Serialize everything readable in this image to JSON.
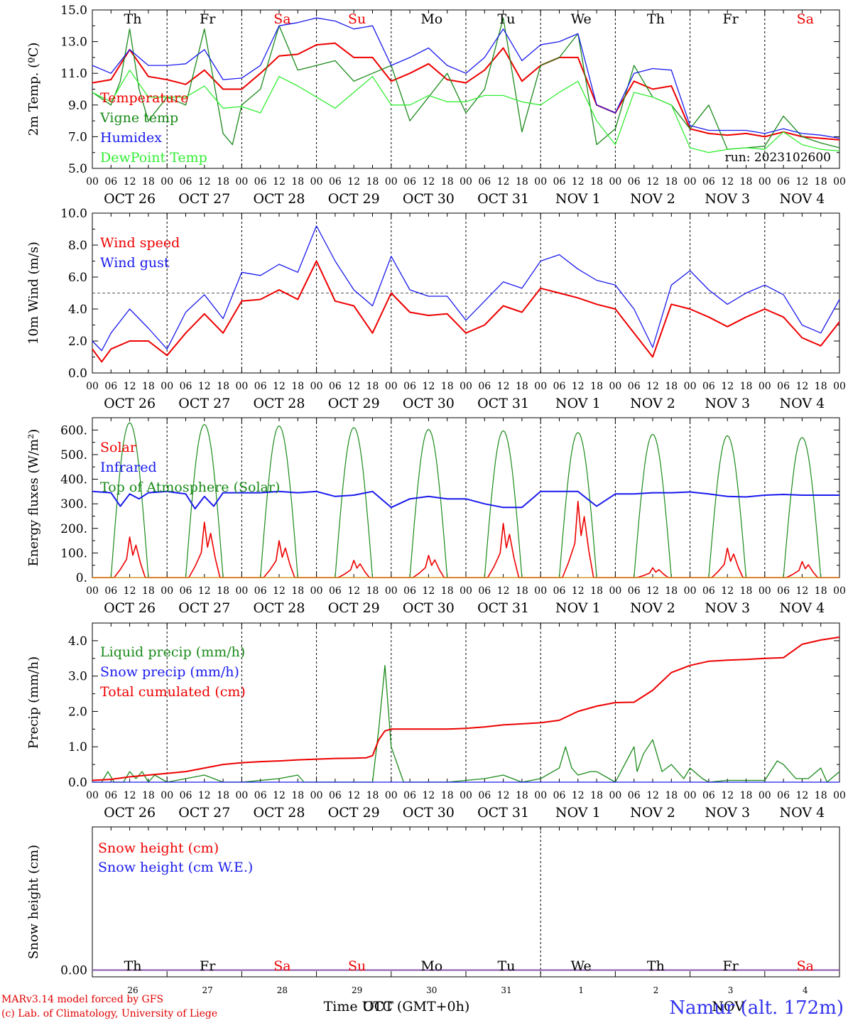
{
  "footer": {
    "credit1": "MARv3.14 model forced by GFS",
    "credit2": "(c) Lab. of Climatology, University of Liege",
    "xlabel": "Time UTC (GMT+0h)",
    "station": "Namur (alt. 172m)",
    "month_left": "OCT",
    "month_right": "NOV"
  },
  "colors": {
    "red": "#ee0000",
    "green": "#1a8a1a",
    "blue": "#1a1aee",
    "lightgreen": "#33ee33",
    "purple": "#8855aa"
  },
  "chart_data": [
    {
      "id": "temp",
      "type": "line",
      "ylabel": "2m Temp. (ºC)",
      "ylim": [
        5,
        15
      ],
      "yticks": [
        5,
        7,
        9,
        11,
        13,
        15
      ],
      "ytick_labels": [
        "5.0",
        "7.0",
        "9.0",
        "11.0",
        "13.0",
        "15.0"
      ],
      "annotation": "run: 2023102600",
      "day_names": [
        "Th",
        "Fr",
        "Sa",
        "Su",
        "Mo",
        "Tu",
        "We",
        "Th",
        "Fr",
        "Sa"
      ],
      "weekend_idx": [
        2,
        3,
        9
      ],
      "series": [
        {
          "name": "Temperature",
          "color": "red",
          "t": [
            0,
            6,
            12,
            18,
            24,
            30,
            36,
            42,
            48,
            54,
            60,
            66,
            72,
            78,
            84,
            90,
            96,
            102,
            108,
            114,
            120,
            126,
            132,
            138,
            144,
            150,
            156,
            162,
            168,
            174,
            180,
            186,
            192,
            198,
            204,
            210,
            216,
            222,
            228,
            234,
            240
          ],
          "v": [
            10.4,
            10.6,
            12.5,
            10.8,
            10.6,
            10.3,
            11.2,
            10.0,
            10.0,
            11.0,
            12.1,
            12.2,
            12.8,
            12.9,
            12.0,
            12.0,
            10.5,
            11.0,
            11.6,
            10.6,
            10.4,
            11.2,
            12.6,
            10.5,
            11.5,
            12.0,
            12.0,
            9.0,
            8.5,
            10.5,
            10.0,
            10.2,
            7.5,
            7.2,
            7.1,
            7.2,
            7.0,
            7.3,
            7.0,
            6.9,
            6.8
          ]
        },
        {
          "name": "Vigne temp",
          "color": "green",
          "t": [
            0,
            6,
            9,
            12,
            15,
            18,
            24,
            30,
            36,
            42,
            45,
            48,
            54,
            60,
            66,
            72,
            78,
            84,
            90,
            96,
            102,
            108,
            114,
            120,
            126,
            132,
            138,
            144,
            150,
            156,
            162,
            168,
            174,
            180,
            186,
            192,
            198,
            204,
            210,
            216,
            222,
            228,
            234,
            240
          ],
          "v": [
            9.8,
            9.0,
            10.5,
            13.8,
            10.0,
            8.0,
            9.5,
            9.0,
            13.8,
            7.2,
            6.5,
            9.0,
            10.0,
            14.0,
            11.2,
            11.5,
            11.8,
            10.5,
            11.0,
            11.5,
            8.0,
            9.5,
            11.0,
            8.5,
            10.0,
            14.5,
            7.3,
            11.5,
            12.0,
            13.5,
            6.5,
            7.5,
            11.5,
            9.5,
            9.0,
            7.5,
            9.0,
            6.2,
            6.3,
            6.4,
            8.3,
            7.0,
            6.6,
            6.3
          ]
        },
        {
          "name": "Humidex",
          "color": "blue",
          "t": [
            0,
            6,
            12,
            18,
            24,
            30,
            36,
            42,
            48,
            54,
            60,
            66,
            72,
            78,
            84,
            90,
            96,
            102,
            108,
            114,
            120,
            126,
            132,
            138,
            144,
            150,
            156,
            162,
            168,
            174,
            180,
            186,
            192,
            198,
            204,
            210,
            216,
            222,
            228,
            234,
            240
          ],
          "v": [
            11.5,
            11.0,
            12.5,
            11.5,
            11.5,
            11.6,
            12.5,
            10.6,
            10.7,
            11.5,
            14.0,
            14.2,
            14.5,
            14.3,
            13.8,
            14.0,
            11.5,
            12.0,
            12.6,
            11.5,
            11.0,
            12.0,
            13.8,
            11.8,
            12.8,
            13.0,
            13.5,
            9.0,
            8.5,
            11.0,
            11.3,
            11.2,
            7.7,
            7.4,
            7.4,
            7.4,
            7.2,
            7.5,
            7.2,
            7.1,
            6.9
          ]
        },
        {
          "name": "DewPoint Temp",
          "color": "lightgreen",
          "t": [
            0,
            6,
            12,
            18,
            24,
            30,
            36,
            42,
            48,
            54,
            60,
            66,
            72,
            78,
            84,
            90,
            96,
            102,
            108,
            114,
            120,
            126,
            132,
            138,
            144,
            150,
            156,
            162,
            168,
            174,
            180,
            186,
            192,
            198,
            204,
            210,
            216,
            222,
            228,
            234,
            240
          ],
          "v": [
            9.8,
            9.2,
            11.2,
            9.5,
            9.5,
            9.5,
            10.2,
            8.8,
            8.9,
            8.5,
            10.8,
            10.2,
            9.5,
            8.8,
            9.8,
            10.8,
            9.0,
            9.0,
            9.6,
            9.2,
            9.2,
            9.6,
            9.6,
            9.2,
            9.0,
            9.8,
            10.5,
            8.0,
            6.5,
            9.8,
            9.5,
            9.0,
            6.3,
            6.0,
            6.2,
            6.3,
            6.2,
            7.3,
            6.5,
            6.2,
            6.1
          ]
        }
      ]
    },
    {
      "id": "wind",
      "type": "line",
      "ylabel": "10m Wind (m/s)",
      "ylim": [
        0,
        10
      ],
      "yticks": [
        0,
        2,
        4,
        6,
        8,
        10
      ],
      "ytick_labels": [
        "0.0",
        "2.0",
        "4.0",
        "6.0",
        "8.0",
        "10.0"
      ],
      "hline": 5,
      "series": [
        {
          "name": "Wind speed",
          "color": "red",
          "t": [
            0,
            3,
            6,
            12,
            18,
            24,
            30,
            36,
            42,
            48,
            54,
            60,
            66,
            72,
            78,
            84,
            90,
            96,
            102,
            108,
            114,
            120,
            126,
            132,
            138,
            144,
            150,
            156,
            162,
            168,
            174,
            180,
            186,
            192,
            198,
            204,
            210,
            216,
            222,
            228,
            234,
            240
          ],
          "v": [
            1.5,
            0.7,
            1.5,
            2.0,
            2.0,
            1.1,
            2.5,
            3.7,
            2.5,
            4.5,
            4.6,
            5.2,
            4.6,
            7.0,
            4.5,
            4.2,
            2.5,
            5.0,
            3.8,
            3.6,
            3.7,
            2.5,
            3.0,
            4.2,
            3.8,
            5.3,
            5.0,
            4.7,
            4.3,
            4.0,
            2.5,
            1.0,
            4.3,
            4.0,
            3.5,
            2.9,
            3.5,
            4.0,
            3.5,
            2.2,
            1.7,
            3.2
          ]
        },
        {
          "name": "Wind gust",
          "color": "blue",
          "t": [
            0,
            3,
            6,
            12,
            18,
            24,
            30,
            36,
            42,
            48,
            54,
            60,
            66,
            72,
            78,
            84,
            90,
            96,
            102,
            108,
            114,
            120,
            126,
            132,
            138,
            144,
            150,
            156,
            162,
            168,
            174,
            180,
            186,
            192,
            198,
            204,
            210,
            216,
            222,
            228,
            234,
            240
          ],
          "v": [
            2.0,
            1.4,
            2.5,
            4.0,
            2.8,
            1.5,
            3.8,
            4.9,
            3.4,
            6.3,
            6.1,
            6.8,
            6.3,
            9.2,
            7.0,
            5.2,
            4.2,
            7.3,
            5.2,
            4.8,
            4.8,
            3.3,
            4.5,
            5.7,
            5.3,
            7.0,
            7.4,
            6.5,
            5.8,
            5.5,
            4.0,
            1.6,
            5.5,
            6.4,
            5.2,
            4.3,
            5.0,
            5.5,
            4.9,
            3.0,
            2.5,
            4.6
          ]
        }
      ]
    },
    {
      "id": "energy",
      "type": "line",
      "ylabel": "Energy fluxes (W/m²)",
      "ylim": [
        0,
        650
      ],
      "yticks": [
        0,
        100,
        200,
        300,
        400,
        500,
        600
      ],
      "ytick_labels": [
        "0.",
        "100.",
        "200.",
        "300.",
        "400.",
        "500.",
        "600."
      ],
      "toa_peaks": [
        630,
        623,
        617,
        610,
        603,
        597,
        590,
        583,
        577,
        570
      ],
      "solar_peaks_day": [
        165,
        225,
        150,
        70,
        90,
        220,
        310,
        40,
        120,
        65
      ],
      "series": [
        {
          "name": "Solar",
          "color": "red"
        },
        {
          "name": "Infrared",
          "color": "blue",
          "t": [
            0,
            6,
            9,
            12,
            15,
            18,
            24,
            30,
            33,
            36,
            39,
            42,
            48,
            54,
            60,
            66,
            72,
            78,
            84,
            90,
            96,
            102,
            108,
            114,
            120,
            126,
            132,
            138,
            144,
            150,
            156,
            162,
            168,
            174,
            180,
            186,
            192,
            198,
            204,
            210,
            216,
            222,
            228,
            234,
            240
          ],
          "v": [
            350,
            345,
            290,
            340,
            320,
            345,
            350,
            340,
            280,
            330,
            290,
            345,
            345,
            345,
            350,
            345,
            350,
            330,
            335,
            350,
            285,
            320,
            330,
            320,
            320,
            300,
            285,
            285,
            350,
            350,
            350,
            290,
            340,
            340,
            345,
            345,
            348,
            340,
            330,
            328,
            335,
            338,
            335,
            335,
            335
          ]
        },
        {
          "name": "Top of Atmosphere (Solar)",
          "color": "green"
        }
      ]
    },
    {
      "id": "precip",
      "type": "line",
      "ylabel": "Precip (mm/h)",
      "ylim": [
        0,
        4.5
      ],
      "yticks": [
        0,
        1,
        2,
        3,
        4
      ],
      "ytick_labels": [
        "0.0",
        "1.0",
        "2.0",
        "3.0",
        "4.0"
      ],
      "series": [
        {
          "name": "Liquid precip (mm/h)",
          "color": "green",
          "t": [
            0,
            3,
            5,
            7,
            10,
            12,
            14,
            16,
            18,
            20,
            24,
            30,
            36,
            42,
            48,
            60,
            66,
            68,
            70,
            72,
            84,
            90,
            92,
            94,
            96,
            100,
            114,
            120,
            126,
            132,
            138,
            144,
            150,
            152,
            154,
            156,
            160,
            162,
            168,
            174,
            175,
            177,
            180,
            183,
            186,
            190,
            192,
            196,
            198,
            204,
            210,
            216,
            220,
            222,
            226,
            230,
            234,
            236,
            240
          ],
          "v": [
            0,
            0,
            0.3,
            0,
            0,
            0.3,
            0.1,
            0.3,
            0,
            0.2,
            0,
            0.1,
            0.2,
            0,
            0,
            0.1,
            0.2,
            0,
            0,
            0,
            0,
            0,
            1.5,
            3.3,
            1.0,
            0,
            0,
            0.05,
            0.1,
            0.2,
            0,
            0.1,
            0.4,
            1.0,
            0.4,
            0.2,
            0.3,
            0.3,
            0,
            1.0,
            0.3,
            0.8,
            1.2,
            0.3,
            0.5,
            0.1,
            0.4,
            0.1,
            0,
            0.05,
            0.05,
            0.05,
            0.6,
            0.5,
            0.1,
            0.1,
            0.4,
            0,
            0.3
          ]
        },
        {
          "name": "Snow precip (mm/h)",
          "color": "blue",
          "t": [
            0,
            240
          ],
          "v": [
            0,
            0
          ]
        },
        {
          "name": "Total cumulated (cm)",
          "color": "red",
          "t": [
            0,
            6,
            12,
            18,
            24,
            30,
            36,
            42,
            48,
            54,
            60,
            66,
            72,
            78,
            84,
            88,
            90,
            92,
            94,
            96,
            100,
            108,
            114,
            120,
            126,
            132,
            138,
            144,
            150,
            156,
            162,
            168,
            174,
            180,
            186,
            192,
            198,
            204,
            210,
            216,
            222,
            228,
            234,
            240
          ],
          "v": [
            0.05,
            0.08,
            0.15,
            0.2,
            0.25,
            0.3,
            0.4,
            0.5,
            0.55,
            0.58,
            0.6,
            0.63,
            0.65,
            0.67,
            0.68,
            0.69,
            0.75,
            1.2,
            1.45,
            1.5,
            1.5,
            1.5,
            1.5,
            1.52,
            1.56,
            1.62,
            1.65,
            1.68,
            1.75,
            2.0,
            2.15,
            2.25,
            2.26,
            2.6,
            3.1,
            3.3,
            3.42,
            3.45,
            3.47,
            3.5,
            3.52,
            3.9,
            4.02,
            4.1
          ]
        }
      ]
    },
    {
      "id": "snow",
      "type": "line",
      "ylabel": "Snow height (cm)",
      "ytick_labels": [
        "0.00"
      ],
      "day_numbers": [
        "26",
        "27",
        "28",
        "29",
        "30",
        "31",
        "1",
        "2",
        "3",
        "4"
      ],
      "series": [
        {
          "name": "Snow height (cm)",
          "color": "red",
          "t": [
            0,
            240
          ],
          "v": [
            0,
            0
          ]
        },
        {
          "name": "Snow height (cm W.E.)",
          "color": "blue",
          "t": [
            0,
            240
          ],
          "v": [
            0,
            0
          ]
        }
      ]
    }
  ],
  "date_labels": [
    "OCT 26",
    "OCT 27",
    "OCT 28",
    "OCT 29",
    "OCT 30",
    "OCT 31",
    "NOV  1",
    "NOV  2",
    "NOV  3",
    "NOV  4"
  ],
  "hour_labels": [
    "00",
    "06",
    "12",
    "18"
  ]
}
